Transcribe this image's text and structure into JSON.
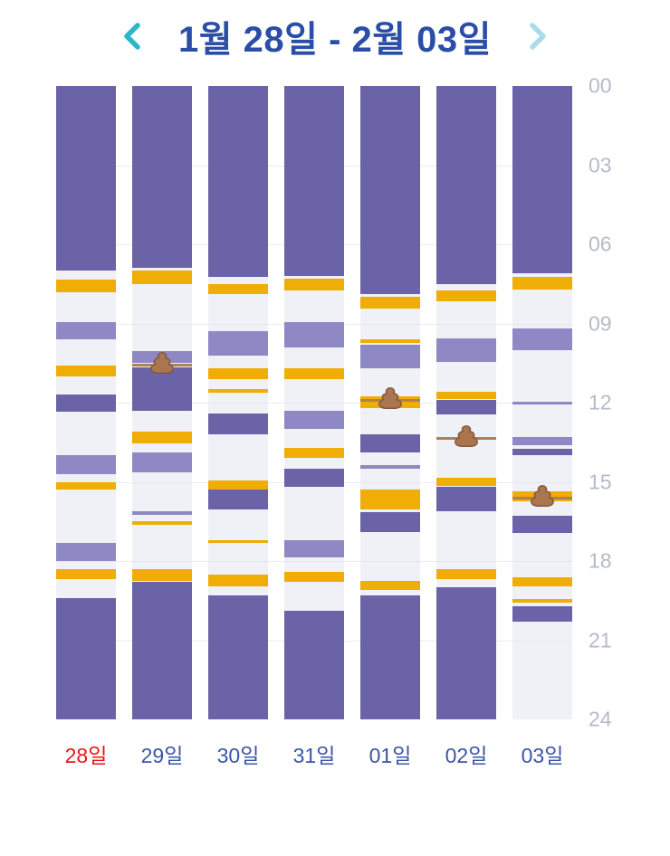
{
  "header": {
    "title": "1월 28일 - 2월 03일",
    "prev_label": "previous week",
    "next_label": "next week"
  },
  "time_axis": {
    "ticks": [
      "00",
      "03",
      "06",
      "09",
      "12",
      "15",
      "18",
      "21",
      "24"
    ],
    "hours_start": 0,
    "hours_end": 24
  },
  "colors": {
    "title": "#2a4ea6",
    "chevron_left": "#2bb6cc",
    "chevron_right": "#a9dbe9",
    "sleep_dark": "#6a63a7",
    "sleep_light": "#8e88c4",
    "feed_yellow": "#efad06",
    "track_background": "#eff1f6",
    "time_label": "#b4bbc7",
    "day_label": "#3a55a8",
    "day_label_red": "#ed1313",
    "poop_line": "#b07f54",
    "poop_fill": "#a9764f"
  },
  "chart_data": {
    "type": "timeline",
    "title": "1월 28일 - 2월 03일",
    "y_axis": {
      "unit": "hour",
      "range": [
        0,
        24
      ],
      "ticks": [
        0,
        3,
        6,
        9,
        12,
        15,
        18,
        21,
        24
      ]
    },
    "block_types": {
      "sleep": "#6a63a7",
      "nap": "#8e88c4",
      "feed": "#efad06"
    },
    "days": [
      {
        "label": "28일",
        "label_color": "red",
        "blocks": [
          [
            0,
            7.0,
            "sleep"
          ],
          [
            7.35,
            7.8,
            "feed"
          ],
          [
            8.95,
            9.6,
            "nap"
          ],
          [
            10.6,
            11.0,
            "feed"
          ],
          [
            11.7,
            12.35,
            "sleep"
          ],
          [
            14.0,
            14.7,
            "nap"
          ],
          [
            15.0,
            15.3,
            "feed"
          ],
          [
            17.3,
            18.0,
            "nap"
          ],
          [
            18.3,
            18.7,
            "feed"
          ],
          [
            19.4,
            24,
            "sleep"
          ]
        ],
        "poops": []
      },
      {
        "label": "29일",
        "label_color": "blue",
        "blocks": [
          [
            0,
            6.9,
            "sleep"
          ],
          [
            7.0,
            7.5,
            "feed"
          ],
          [
            10.05,
            10.5,
            "nap"
          ],
          [
            10.65,
            12.3,
            "sleep"
          ],
          [
            13.1,
            13.55,
            "feed"
          ],
          [
            13.9,
            14.65,
            "nap"
          ],
          [
            16.1,
            16.25,
            "nap"
          ],
          [
            16.5,
            16.62,
            "feed"
          ],
          [
            18.3,
            18.75,
            "feed"
          ],
          [
            18.8,
            24,
            "sleep"
          ]
        ],
        "poops": [
          10.55
        ]
      },
      {
        "label": "30일",
        "label_color": "blue",
        "blocks": [
          [
            0,
            7.25,
            "sleep"
          ],
          [
            7.5,
            7.9,
            "feed"
          ],
          [
            9.3,
            10.2,
            "nap"
          ],
          [
            10.7,
            11.1,
            "feed"
          ],
          [
            11.5,
            11.62,
            "feed"
          ],
          [
            12.4,
            13.2,
            "sleep"
          ],
          [
            14.95,
            15.3,
            "feed"
          ],
          [
            15.3,
            16.05,
            "sleep"
          ],
          [
            17.2,
            17.32,
            "feed"
          ],
          [
            18.5,
            18.95,
            "feed"
          ],
          [
            19.3,
            24,
            "sleep"
          ]
        ],
        "poops": []
      },
      {
        "label": "31일",
        "label_color": "blue",
        "blocks": [
          [
            0,
            7.2,
            "sleep"
          ],
          [
            7.3,
            7.75,
            "feed"
          ],
          [
            8.95,
            9.9,
            "nap"
          ],
          [
            10.7,
            11.1,
            "feed"
          ],
          [
            12.3,
            13.0,
            "nap"
          ],
          [
            13.7,
            14.1,
            "feed"
          ],
          [
            14.5,
            15.2,
            "sleep"
          ],
          [
            17.2,
            17.85,
            "nap"
          ],
          [
            18.4,
            18.8,
            "feed"
          ],
          [
            19.9,
            24,
            "sleep"
          ]
        ],
        "poops": []
      },
      {
        "label": "01일",
        "label_color": "blue",
        "blocks": [
          [
            0,
            7.9,
            "sleep"
          ],
          [
            8.0,
            8.45,
            "feed"
          ],
          [
            9.6,
            9.72,
            "feed"
          ],
          [
            9.8,
            10.7,
            "nap"
          ],
          [
            11.75,
            12.2,
            "feed"
          ],
          [
            13.2,
            13.9,
            "sleep"
          ],
          [
            14.35,
            14.5,
            "nap"
          ],
          [
            15.3,
            16.05,
            "feed"
          ],
          [
            16.15,
            16.9,
            "sleep"
          ],
          [
            18.75,
            19.1,
            "feed"
          ],
          [
            19.3,
            24,
            "sleep"
          ]
        ],
        "poops": [
          11.9
        ]
      },
      {
        "label": "02일",
        "label_color": "blue",
        "blocks": [
          [
            0,
            7.5,
            "sleep"
          ],
          [
            7.75,
            8.15,
            "feed"
          ],
          [
            9.55,
            10.45,
            "nap"
          ],
          [
            11.6,
            11.85,
            "feed"
          ],
          [
            11.9,
            12.45,
            "sleep"
          ],
          [
            14.85,
            15.15,
            "feed"
          ],
          [
            15.2,
            16.1,
            "sleep"
          ],
          [
            18.3,
            18.7,
            "feed"
          ],
          [
            19.0,
            24,
            "sleep"
          ]
        ],
        "poops": [
          13.35
        ]
      },
      {
        "label": "03일",
        "label_color": "blue",
        "blocks": [
          [
            0,
            7.1,
            "sleep"
          ],
          [
            7.25,
            7.7,
            "feed"
          ],
          [
            9.2,
            10.0,
            "nap"
          ],
          [
            11.95,
            12.07,
            "nap"
          ],
          [
            13.3,
            13.6,
            "nap"
          ],
          [
            13.75,
            14.0,
            "sleep"
          ],
          [
            15.35,
            15.75,
            "feed"
          ],
          [
            16.3,
            16.95,
            "sleep"
          ],
          [
            18.6,
            18.95,
            "feed"
          ],
          [
            19.45,
            19.58,
            "feed"
          ],
          [
            19.7,
            20.3,
            "sleep"
          ]
        ],
        "poops": [
          15.6
        ]
      }
    ]
  }
}
